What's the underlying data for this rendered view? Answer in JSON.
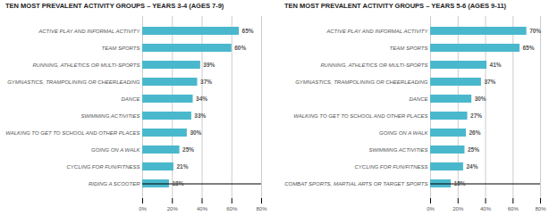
{
  "chart_data": [
    {
      "type": "bar",
      "orientation": "horizontal",
      "title": "TEN MOST PREVALENT ACTIVITY GROUPS – YEARS 3-4 (AGES 7-9)",
      "categories": [
        "RIDING A SCOOTER",
        "CYCLING FOR FUN/FITNESS",
        "GOING ON A WALK",
        "WALKING TO GET TO SCHOOL AND OTHER PLACES",
        "SWIMMING ACTIVITIES",
        "DANCE",
        "GYMNASTICS, TRAMPOLINING OR CHEERLEADING",
        "RUNNING, ATHLETICS OR MULTI-SPORTS",
        "TEAM SPORTS",
        "ACTIVE PLAY AND INFORMAL ACTIVITY"
      ],
      "values": [
        18,
        21,
        25,
        30,
        33,
        34,
        37,
        39,
        60,
        65
      ],
      "value_labels": [
        "18%",
        "21%",
        "25%",
        "30%",
        "33%",
        "34%",
        "37%",
        "39%",
        "60%",
        "65%"
      ],
      "data_labels": true,
      "color": "#4ab8cc",
      "xlim": [
        0,
        80
      ],
      "xticks": [
        {
          "value": 0,
          "label": "0%"
        },
        {
          "value": 20,
          "label": "20%"
        },
        {
          "value": 40,
          "label": "40%"
        },
        {
          "value": 60,
          "label": "60%"
        },
        {
          "value": 80,
          "label": "80%"
        }
      ],
      "grid": true
    },
    {
      "type": "bar",
      "orientation": "horizontal",
      "title": "TEN MOST PREVALENT ACTIVITY GROUPS – YEARS 5-6 (AGES 9-11)",
      "categories": [
        "COMBAT SPORTS, MARTIAL ARTS OR TARGET SPORTS",
        "CYCLING FOR FUN/FITNESS",
        "SWIMMING ACTIVITIES",
        "GOING ON A WALK",
        "WALKING TO GET TO SCHOOL AND OTHER PLACES",
        "DANCE",
        "GYMNASTICS, TRAMPOLINING OR CHEERLEADING",
        "RUNNING, ATHLETICS OR MULTI-SPORTS",
        "TEAM SPORTS",
        "ACTIVE PLAY AND INFORMAL ACTIVITY"
      ],
      "values": [
        15,
        24,
        25,
        26,
        27,
        30,
        37,
        41,
        65,
        70
      ],
      "value_labels": [
        "15%",
        "24%",
        "25%",
        "26%",
        "27%",
        "30%",
        "37%",
        "41%",
        "65%",
        "70%"
      ],
      "data_labels": true,
      "color": "#4ab8cc",
      "xlim": [
        0,
        80
      ],
      "xticks": [
        {
          "value": 0,
          "label": "0%"
        },
        {
          "value": 20,
          "label": "20%"
        },
        {
          "value": 40,
          "label": "40%"
        },
        {
          "value": 60,
          "label": "60%"
        },
        {
          "value": 80,
          "label": "80%"
        }
      ],
      "grid": true
    }
  ]
}
